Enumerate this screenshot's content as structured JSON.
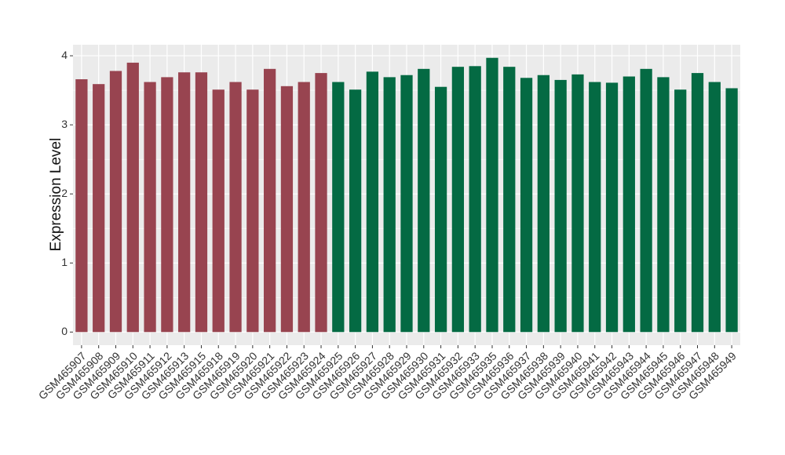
{
  "chart_data": {
    "type": "bar",
    "y_label": "Expression Level",
    "categories": [
      "GSM465907",
      "GSM465908",
      "GSM465909",
      "GSM465910",
      "GSM465911",
      "GSM465912",
      "GSM465913",
      "GSM465915",
      "GSM465918",
      "GSM465919",
      "GSM465920",
      "GSM465921",
      "GSM465922",
      "GSM465923",
      "GSM465924",
      "GSM465925",
      "GSM465926",
      "GSM465927",
      "GSM465928",
      "GSM465929",
      "GSM465930",
      "GSM465931",
      "GSM465932",
      "GSM465933",
      "GSM465935",
      "GSM465936",
      "GSM465937",
      "GSM465938",
      "GSM465939",
      "GSM465940",
      "GSM465941",
      "GSM465942",
      "GSM465943",
      "GSM465944",
      "GSM465945",
      "GSM465946",
      "GSM465947",
      "GSM465948",
      "GSM465949"
    ],
    "values": [
      3.66,
      3.59,
      3.78,
      3.9,
      3.62,
      3.69,
      3.76,
      3.76,
      3.51,
      3.62,
      3.51,
      3.81,
      3.56,
      3.62,
      3.75,
      3.62,
      3.51,
      3.77,
      3.69,
      3.72,
      3.81,
      3.55,
      3.84,
      3.85,
      3.97,
      3.84,
      3.68,
      3.72,
      3.65,
      3.73,
      3.62,
      3.61,
      3.7,
      3.81,
      3.69,
      3.51,
      3.75,
      3.62,
      3.53
    ],
    "colors": [
      "#984450",
      "#984450",
      "#984450",
      "#984450",
      "#984450",
      "#984450",
      "#984450",
      "#984450",
      "#984450",
      "#984450",
      "#984450",
      "#984450",
      "#984450",
      "#984450",
      "#984450",
      "#046a43",
      "#046a43",
      "#046a43",
      "#046a43",
      "#046a43",
      "#046a43",
      "#046a43",
      "#046a43",
      "#046a43",
      "#046a43",
      "#046a43",
      "#046a43",
      "#046a43",
      "#046a43",
      "#046a43",
      "#046a43",
      "#046a43",
      "#046a43",
      "#046a43",
      "#046a43",
      "#046a43",
      "#046a43",
      "#046a43",
      "#046a43"
    ],
    "ylim": [
      -0.19,
      4.16
    ],
    "yticks": [
      0,
      1,
      2,
      3,
      4
    ],
    "grid": true
  }
}
